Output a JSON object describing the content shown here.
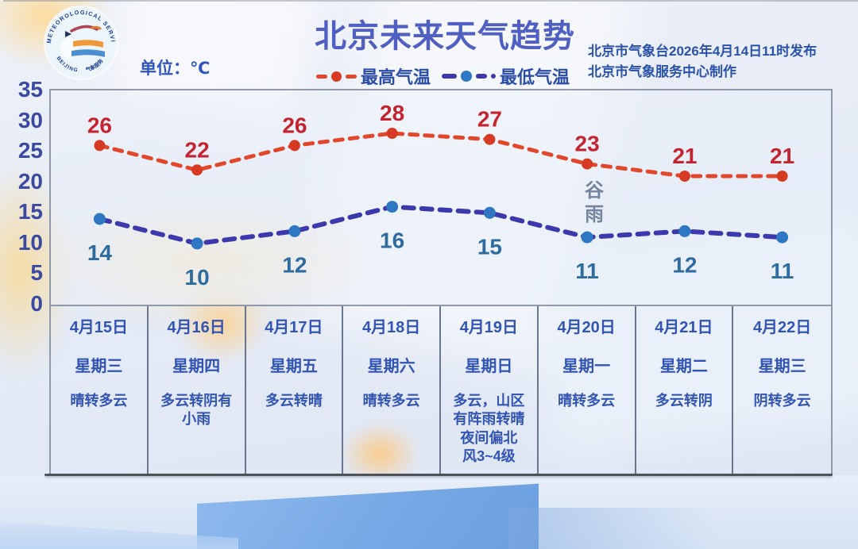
{
  "header": {
    "title": "北京未来天气趋势",
    "unit_label": "单位：℃",
    "source_line1": "北京市气象台2026年4月14日11时发布",
    "source_line2": "北京市气象服务中心制作",
    "logo": {
      "arc_text_top": "METEOROLOGICAL SERVICE",
      "arc_text_bottom": "BEIJING",
      "logo_cn": "气象服务"
    }
  },
  "legend": [
    {
      "label": "最高气温",
      "color": "#e1472a",
      "marker": "dash-dot-dash"
    },
    {
      "label": "最低气温",
      "color": "#3c39ad",
      "marker": "dash-dot-dash-dot"
    }
  ],
  "chart_data": {
    "type": "line",
    "title": "北京未来天气趋势",
    "unit": "℃",
    "categories": [
      "4月15日",
      "4月16日",
      "4月17日",
      "4月18日",
      "4月19日",
      "4月20日",
      "4月21日",
      "4月22日"
    ],
    "series": [
      {
        "id": "high-temp",
        "name": "最高气温",
        "values": [
          26,
          22,
          26,
          28,
          27,
          23,
          21,
          21
        ],
        "color": "#e1472a",
        "marker_color": "#d63a22",
        "label_color": "#c3242f",
        "style": "dashed"
      },
      {
        "id": "low-temp",
        "name": "最低气温",
        "values": [
          14,
          10,
          12,
          16,
          15,
          11,
          12,
          11
        ],
        "color": "#3c39ad",
        "marker_color": "#2e77c2",
        "label_color": "#2e6b9f",
        "style": "dashed"
      }
    ],
    "ylim": [
      0,
      35
    ],
    "yticks": [
      35,
      30,
      25,
      20,
      15,
      10,
      5,
      0
    ],
    "grid": false,
    "legend_position": "top",
    "annotation": {
      "text": "谷雨",
      "x_category": "4月20日",
      "orientation": "vertical"
    }
  },
  "forecast": {
    "days": [
      {
        "date": "4月15日",
        "weekday": "星期三",
        "weather": "晴转多云"
      },
      {
        "date": "4月16日",
        "weekday": "星期四",
        "weather": "多云转阴有\n小雨"
      },
      {
        "date": "4月17日",
        "weekday": "星期五",
        "weather": "多云转晴"
      },
      {
        "date": "4月18日",
        "weekday": "星期六",
        "weather": "晴转多云"
      },
      {
        "date": "4月19日",
        "weekday": "星期日",
        "weather": "多云，山区\n有阵雨转晴\n夜间偏北\n风3~4级"
      },
      {
        "date": "4月20日",
        "weekday": "星期一",
        "weather": "晴转多云"
      },
      {
        "date": "4月21日",
        "weekday": "星期二",
        "weather": "多云转阴"
      },
      {
        "date": "4月22日",
        "weekday": "星期三",
        "weather": "阴转多云"
      }
    ]
  }
}
